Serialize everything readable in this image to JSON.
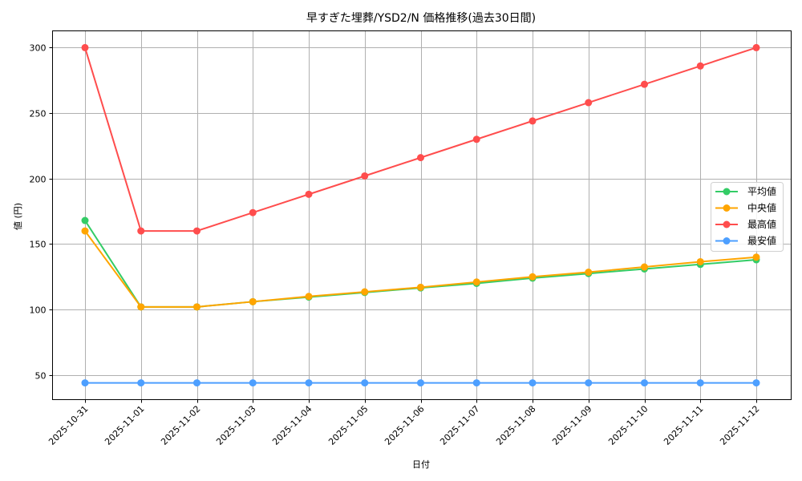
{
  "chart_data": {
    "type": "line",
    "title": "早すぎた埋葬/YSD2/N 価格推移(過去30日間)",
    "xlabel": "日付",
    "ylabel": "値 (円)",
    "categories": [
      "2025-10-31",
      "2025-11-01",
      "2025-11-02",
      "2025-11-03",
      "2025-11-04",
      "2025-11-05",
      "2025-11-06",
      "2025-11-07",
      "2025-11-08",
      "2025-11-09",
      "2025-11-10",
      "2025-11-11",
      "2025-11-12"
    ],
    "series": [
      {
        "name": "平均値",
        "color": "#33cc66",
        "values": [
          168,
          102,
          102,
          106,
          109.5,
          113,
          116.5,
          120,
          124,
          127.5,
          131,
          134.5,
          138
        ]
      },
      {
        "name": "中央値",
        "color": "#ffa500",
        "values": [
          160,
          102,
          102,
          106,
          110,
          113.5,
          117,
          121,
          125,
          128.5,
          132.5,
          136.5,
          140
        ]
      },
      {
        "name": "最高値",
        "color": "#ff4d4d",
        "values": [
          300,
          160,
          160,
          174,
          188,
          202,
          216,
          230,
          244,
          258,
          272,
          286,
          300
        ]
      },
      {
        "name": "最安値",
        "color": "#4d9fff",
        "values": [
          44,
          44,
          44,
          44,
          44,
          44,
          44,
          44,
          44,
          44,
          44,
          44,
          44
        ]
      }
    ],
    "yticks": [
      50,
      100,
      150,
      200,
      250,
      300
    ],
    "ylim": [
      31.2,
      312.8
    ],
    "grid": true,
    "legend_position": "center right"
  }
}
